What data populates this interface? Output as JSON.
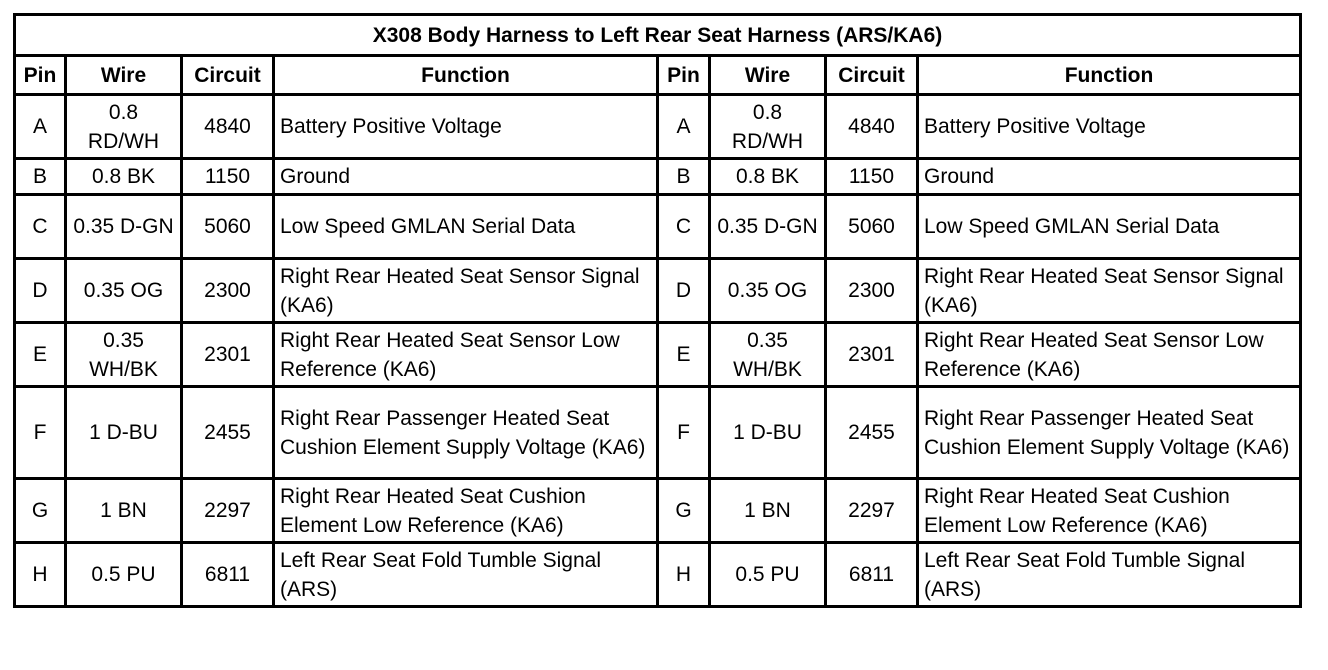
{
  "title": "X308 Body Harness to Left Rear Seat Harness (ARS/KA6)",
  "headers": [
    "Pin",
    "Wire",
    "Circuit",
    "Function"
  ],
  "rows": [
    {
      "pin": "A",
      "wire": "0.8 RD/WH",
      "circuit": "4840",
      "function": "Battery Positive Voltage"
    },
    {
      "pin": "B",
      "wire": "0.8 BK",
      "circuit": "1150",
      "function": "Ground"
    },
    {
      "pin": "C",
      "wire": "0.35 D-GN",
      "circuit": "5060",
      "function": "Low Speed GMLAN Serial Data"
    },
    {
      "pin": "D",
      "wire": "0.35 OG",
      "circuit": "2300",
      "function": "Right Rear Heated Seat Sensor Signal (KA6)"
    },
    {
      "pin": "E",
      "wire": "0.35 WH/BK",
      "circuit": "2301",
      "function": "Right Rear Heated Seat Sensor Low Reference (KA6)"
    },
    {
      "pin": "F",
      "wire": "1 D-BU",
      "circuit": "2455",
      "function": "Right Rear Passenger Heated Seat Cushion Element Supply Voltage (KA6)"
    },
    {
      "pin": "G",
      "wire": "1 BN",
      "circuit": "2297",
      "function": "Right Rear Heated Seat Cushion Element Low Reference (KA6)"
    },
    {
      "pin": "H",
      "wire": "0.5 PU",
      "circuit": "6811",
      "function": "Left Rear Seat Fold Tumble Signal (ARS)"
    }
  ]
}
